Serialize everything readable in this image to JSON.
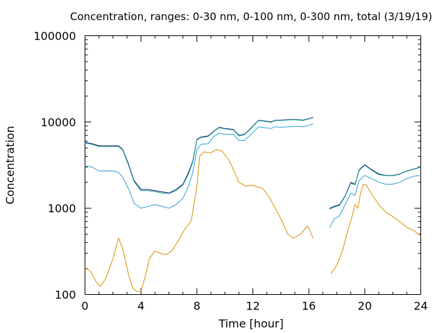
{
  "chart_data": {
    "type": "line",
    "title": "Concentration, ranges: 0-30 nm, 0-100 nm, 0-300 nm, total (3/19/19)",
    "xlabel": "Time [hour]",
    "ylabel": "Concentration",
    "xlim": [
      0,
      24
    ],
    "ylim": [
      100,
      100000
    ],
    "yscale": "log",
    "grid": false,
    "x_ticks": [
      "0",
      "4",
      "8",
      "12",
      "16",
      "20",
      "24"
    ],
    "y_ticks": [
      "100",
      "1000",
      "10000",
      "100000"
    ],
    "series": [
      {
        "color": "#d98e00",
        "points": [
          [
            0,
            205
          ],
          [
            0.4,
            185
          ],
          [
            0.8,
            140
          ],
          [
            1.1,
            125
          ],
          [
            1.5,
            155
          ],
          [
            2,
            260
          ],
          [
            2.4,
            450
          ],
          [
            2.7,
            340
          ],
          [
            3.1,
            175
          ],
          [
            3.4,
            120
          ],
          [
            3.7,
            108
          ],
          [
            4,
            110
          ],
          [
            4.3,
            160
          ],
          [
            4.6,
            260
          ],
          [
            5,
            320
          ],
          [
            5.4,
            300
          ],
          [
            5.8,
            290
          ],
          [
            6.2,
            320
          ],
          [
            6.6,
            400
          ],
          [
            7.1,
            560
          ],
          [
            7.6,
            720
          ],
          [
            8,
            1800
          ],
          [
            8.2,
            4000
          ],
          [
            8.5,
            4500
          ],
          [
            9,
            4400
          ],
          [
            9.4,
            4800
          ],
          [
            9.8,
            4600
          ],
          [
            10.3,
            3600
          ],
          [
            10.7,
            2600
          ],
          [
            11,
            2000
          ],
          [
            11.5,
            1800
          ],
          [
            11.9,
            1850
          ],
          [
            12.2,
            1800
          ],
          [
            12.7,
            1700
          ],
          [
            13.1,
            1400
          ],
          [
            13.6,
            1000
          ],
          [
            14.1,
            700
          ],
          [
            14.5,
            500
          ],
          [
            14.9,
            450
          ],
          [
            15.4,
            500
          ],
          [
            15.9,
            620
          ],
          [
            16.1,
            540
          ],
          [
            16.3,
            450
          ],
          [
            null,
            null
          ],
          [
            17.6,
            175
          ],
          [
            18,
            220
          ],
          [
            18.4,
            320
          ],
          [
            18.8,
            560
          ],
          [
            19.1,
            820
          ],
          [
            19.3,
            1100
          ],
          [
            19.5,
            1000
          ],
          [
            19.7,
            1500
          ],
          [
            19.9,
            1900
          ],
          [
            20.1,
            1850
          ],
          [
            20.5,
            1450
          ],
          [
            21,
            1100
          ],
          [
            21.5,
            900
          ],
          [
            22,
            800
          ],
          [
            22.5,
            700
          ],
          [
            23,
            600
          ],
          [
            23.5,
            550
          ],
          [
            24,
            480
          ]
        ]
      },
      {
        "color": "#2aa0d8",
        "points": [
          [
            0,
            3100
          ],
          [
            0.5,
            3000
          ],
          [
            1,
            2700
          ],
          [
            1.5,
            2700
          ],
          [
            2,
            2700
          ],
          [
            2.4,
            2600
          ],
          [
            2.7,
            2300
          ],
          [
            3.1,
            1700
          ],
          [
            3.5,
            1150
          ],
          [
            4,
            1000
          ],
          [
            4.5,
            1050
          ],
          [
            5,
            1100
          ],
          [
            5.5,
            1050
          ],
          [
            6,
            1000
          ],
          [
            6.5,
            1100
          ],
          [
            7,
            1300
          ],
          [
            7.4,
            1800
          ],
          [
            7.7,
            2600
          ],
          [
            8,
            4800
          ],
          [
            8.3,
            5500
          ],
          [
            8.8,
            5600
          ],
          [
            9.2,
            6800
          ],
          [
            9.6,
            7400
          ],
          [
            10,
            7200
          ],
          [
            10.6,
            7200
          ],
          [
            11,
            6100
          ],
          [
            11.4,
            6100
          ],
          [
            11.9,
            7300
          ],
          [
            12.4,
            8800
          ],
          [
            12.8,
            8600
          ],
          [
            13.3,
            8400
          ],
          [
            13.6,
            8800
          ],
          [
            14,
            8700
          ],
          [
            14.6,
            8800
          ],
          [
            15.1,
            8900
          ],
          [
            15.6,
            8800
          ],
          [
            16.3,
            9500
          ],
          [
            null,
            null
          ],
          [
            17.5,
            600
          ],
          [
            17.8,
            750
          ],
          [
            18.2,
            820
          ],
          [
            18.6,
            1100
          ],
          [
            19,
            1500
          ],
          [
            19.3,
            1400
          ],
          [
            19.6,
            2100
          ],
          [
            20,
            2400
          ],
          [
            20.5,
            2200
          ],
          [
            21,
            2000
          ],
          [
            21.5,
            1900
          ],
          [
            22,
            1900
          ],
          [
            22.5,
            2000
          ],
          [
            23,
            2200
          ],
          [
            23.5,
            2350
          ],
          [
            24,
            2400
          ]
        ]
      },
      {
        "color": "#1a1a8a",
        "points": [
          [
            0,
            5800
          ],
          [
            0.5,
            5600
          ],
          [
            1,
            5300
          ],
          [
            1.5,
            5300
          ],
          [
            2,
            5300
          ],
          [
            2.4,
            5300
          ],
          [
            2.7,
            4800
          ],
          [
            3.1,
            3300
          ],
          [
            3.5,
            2100
          ],
          [
            4,
            1650
          ],
          [
            4.5,
            1650
          ],
          [
            5,
            1600
          ],
          [
            5.5,
            1550
          ],
          [
            6,
            1500
          ],
          [
            6.5,
            1650
          ],
          [
            7,
            1900
          ],
          [
            7.4,
            2600
          ],
          [
            7.7,
            3500
          ],
          [
            8,
            6300
          ],
          [
            8.3,
            6700
          ],
          [
            8.8,
            6900
          ],
          [
            9.2,
            7800
          ],
          [
            9.6,
            8700
          ],
          [
            10,
            8400
          ],
          [
            10.6,
            8200
          ],
          [
            11,
            7000
          ],
          [
            11.4,
            7200
          ],
          [
            11.9,
            8600
          ],
          [
            12.4,
            10500
          ],
          [
            12.8,
            10300
          ],
          [
            13.3,
            10000
          ],
          [
            13.6,
            10500
          ],
          [
            14,
            10500
          ],
          [
            14.6,
            10700
          ],
          [
            15.1,
            10700
          ],
          [
            15.6,
            10500
          ],
          [
            16.3,
            11300
          ],
          [
            null,
            null
          ],
          [
            17.5,
            1000
          ],
          [
            17.8,
            1050
          ],
          [
            18.2,
            1100
          ],
          [
            18.6,
            1400
          ],
          [
            19,
            2000
          ],
          [
            19.3,
            1900
          ],
          [
            19.6,
            2800
          ],
          [
            20,
            3200
          ],
          [
            20.5,
            2800
          ],
          [
            21,
            2500
          ],
          [
            21.5,
            2400
          ],
          [
            22,
            2400
          ],
          [
            22.5,
            2500
          ],
          [
            23,
            2700
          ],
          [
            23.5,
            2850
          ],
          [
            24,
            3000
          ]
        ]
      },
      {
        "color": "#19a38a",
        "points": [
          [
            0,
            5700
          ],
          [
            0.5,
            5500
          ],
          [
            1,
            5200
          ],
          [
            1.5,
            5200
          ],
          [
            2,
            5200
          ],
          [
            2.4,
            5200
          ],
          [
            2.7,
            4700
          ],
          [
            3.1,
            3200
          ],
          [
            3.5,
            2050
          ],
          [
            4,
            1600
          ],
          [
            4.5,
            1600
          ],
          [
            5,
            1560
          ],
          [
            5.5,
            1500
          ],
          [
            6,
            1480
          ],
          [
            6.5,
            1600
          ],
          [
            7,
            1850
          ],
          [
            7.4,
            2500
          ],
          [
            7.7,
            3400
          ],
          [
            8,
            6200
          ],
          [
            8.3,
            6600
          ],
          [
            8.8,
            6800
          ],
          [
            9.2,
            7700
          ],
          [
            9.6,
            8600
          ],
          [
            10,
            8300
          ],
          [
            10.6,
            8100
          ],
          [
            11,
            6900
          ],
          [
            11.4,
            7100
          ],
          [
            11.9,
            8500
          ],
          [
            12.4,
            10400
          ],
          [
            12.8,
            10200
          ],
          [
            13.3,
            9900
          ],
          [
            13.6,
            10400
          ],
          [
            14,
            10400
          ],
          [
            14.6,
            10600
          ],
          [
            15.1,
            10600
          ],
          [
            15.6,
            10400
          ],
          [
            16.3,
            11200
          ],
          [
            null,
            null
          ],
          [
            17.5,
            980
          ],
          [
            17.8,
            1030
          ],
          [
            18.2,
            1080
          ],
          [
            18.6,
            1380
          ],
          [
            19,
            1950
          ],
          [
            19.3,
            1870
          ],
          [
            19.6,
            2750
          ],
          [
            20,
            3150
          ],
          [
            20.5,
            2750
          ],
          [
            21,
            2450
          ],
          [
            21.5,
            2380
          ],
          [
            22,
            2380
          ],
          [
            22.5,
            2480
          ],
          [
            23,
            2680
          ],
          [
            23.5,
            2830
          ],
          [
            24,
            2980
          ]
        ]
      }
    ]
  }
}
